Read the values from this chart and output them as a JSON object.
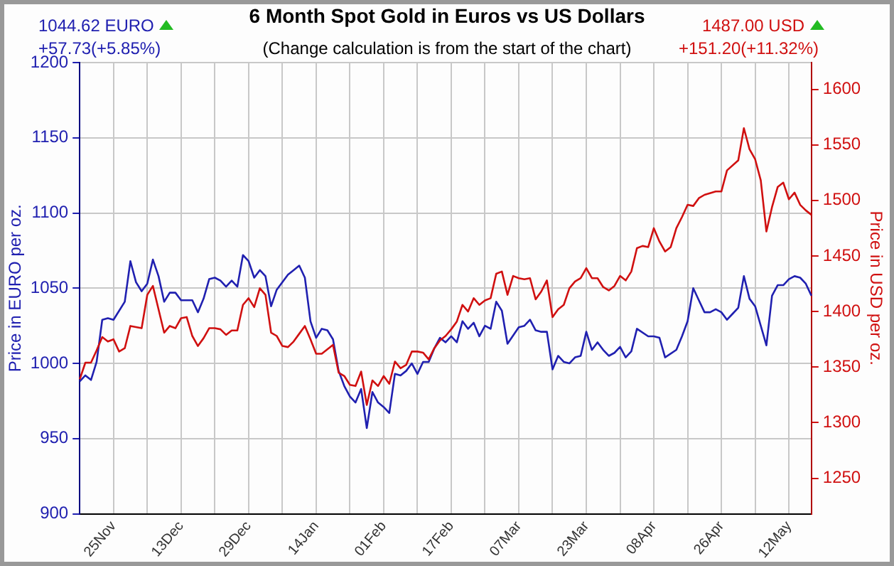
{
  "chart_data": {
    "type": "line",
    "title": "6 Month Spot Gold in Euros vs US Dollars",
    "subtitle": "(Change calculation is from the start of the chart)",
    "annotations": [
      "1044.62 EURO",
      "+57.73(+5.85%)",
      "1487.00 USD",
      "+151.20(+11.32%)"
    ],
    "ylabel": "Price in EURO per oz.",
    "y2label": "Price in USD per oz.",
    "categories": [
      null,
      null,
      null,
      null,
      null,
      null,
      "25Nov",
      null,
      null,
      null,
      null,
      null,
      null,
      null,
      null,
      null,
      null,
      null,
      "13Dec",
      null,
      null,
      null,
      null,
      null,
      null,
      null,
      null,
      null,
      null,
      null,
      "29Dec",
      null,
      null,
      null,
      null,
      null,
      null,
      null,
      null,
      null,
      null,
      null,
      "14Jan",
      null,
      null,
      null,
      null,
      null,
      null,
      null,
      null,
      null,
      null,
      null,
      "01Feb",
      null,
      null,
      null,
      null,
      null,
      null,
      null,
      null,
      null,
      null,
      null,
      "17Feb",
      null,
      null,
      null,
      null,
      null,
      null,
      null,
      null,
      null,
      null,
      null,
      "07Mar",
      null,
      null,
      null,
      null,
      null,
      null,
      null,
      null,
      null,
      null,
      null,
      "23Mar",
      null,
      null,
      null,
      null,
      null,
      null,
      null,
      null,
      null,
      null,
      null,
      "08Apr",
      null,
      null,
      null,
      null,
      null,
      null,
      null,
      null,
      null,
      null,
      null,
      "26Apr",
      null,
      null,
      null,
      null,
      null,
      null,
      null,
      null,
      null,
      null,
      null,
      "12May",
      null,
      null,
      null,
      null
    ],
    "ylim": [
      900,
      1200
    ],
    "yticks": [
      900,
      950,
      1000,
      1050,
      1100,
      1150,
      1200
    ],
    "y2lim": [
      1218,
      1624
    ],
    "y2ticks": [
      1250,
      1300,
      1350,
      1400,
      1450,
      1500,
      1550,
      1600
    ],
    "grid": true,
    "marker": "none",
    "line_style": "solid",
    "series": [
      {
        "color": "#2020b0",
        "values": [
          988,
          992,
          989,
          1001,
          1029,
          1030,
          1029,
          null,
          1041,
          1068,
          1054,
          1048,
          1053,
          1069,
          1058,
          1041,
          1047,
          1047,
          1042,
          null,
          1042,
          1034,
          1043,
          1056,
          1057,
          1055,
          1051,
          1055,
          1051,
          1072,
          1068,
          1057,
          1062,
          1058,
          1038,
          1049,
          null,
          1059,
          1062,
          1065,
          1057,
          1028,
          1017,
          1023,
          1022,
          1016,
          995,
          985,
          978,
          974,
          983,
          957,
          981,
          974,
          971,
          967,
          993,
          992,
          995,
          1000,
          993,
          1001,
          1001,
          1010,
          1017,
          1014,
          1018,
          1014,
          1028,
          1023,
          1027,
          1018,
          1025,
          1023,
          1041,
          1035,
          1013,
          null,
          1024,
          1025,
          1029,
          1022,
          1021,
          1021,
          996,
          1005,
          1001,
          1000,
          1004,
          1005,
          1021,
          1009,
          1014,
          1009,
          1005,
          1007,
          1011,
          1004,
          1008,
          1023,
          null,
          1018,
          1018,
          1017,
          1004,
          null,
          1009,
          1018,
          1028,
          1050,
          1042,
          1034,
          1034,
          1036,
          1034,
          1029,
          1033,
          1037,
          1058,
          1043,
          1038,
          1025,
          1012,
          1045,
          1052,
          1052,
          1056,
          1058,
          1057,
          1053,
          1045
        ]
      },
      {
        "color": "#d01010",
        "axis": "y2",
        "values": [
          1339,
          1354,
          1354,
          1365,
          1377,
          1373,
          1375,
          1364,
          1367,
          1387,
          1386,
          1385,
          1415,
          1423,
          1402,
          1381,
          1387,
          1385,
          1394,
          1395,
          1378,
          1369,
          1376,
          1385,
          1385,
          1384,
          1379,
          1383,
          1383,
          1406,
          1412,
          1404,
          1421,
          1415,
          1381,
          1378,
          1369,
          1368,
          1373,
          1380,
          1387,
          1375,
          1362,
          1362,
          1366,
          1370,
          1345,
          1342,
          1334,
          1333,
          1346,
          1316,
          1338,
          1333,
          1342,
          1335,
          1355,
          1349,
          1352,
          1364,
          1364,
          1363,
          1357,
          1367,
          1374,
          1378,
          1384,
          1391,
          1406,
          1400,
          1412,
          1406,
          1410,
          1412,
          1434,
          1436,
          1415,
          1432,
          1430,
          1429,
          1430,
          1411,
          1418,
          1428,
          1395,
          1402,
          1406,
          1421,
          1427,
          1430,
          1439,
          1430,
          1430,
          1422,
          1419,
          1423,
          1432,
          1428,
          1436,
          1457,
          1459,
          1458,
          1475,
          1463,
          1454,
          1458,
          1475,
          1485,
          1496,
          1495,
          1502,
          1505,
          null,
          1508,
          1508,
          1527,
          null,
          1536,
          1565,
          1546,
          1537,
          1518,
          1472,
          1494,
          1512,
          1516,
          1501,
          1507,
          1496,
          1491,
          1487
        ]
      }
    ]
  }
}
